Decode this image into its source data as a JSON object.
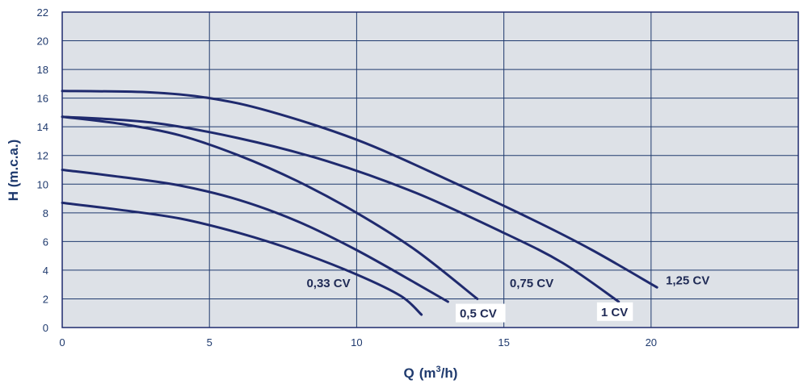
{
  "chart_data": {
    "type": "line",
    "title": "",
    "xlabel": "Q",
    "xlabel_unit_base": "(m",
    "xlabel_unit_sup": "3",
    "xlabel_unit_end": "/h)",
    "ylabel": "H (m.c.a.)",
    "xlim": [
      0,
      25
    ],
    "ylim": [
      0,
      22
    ],
    "xticks": [
      0,
      5,
      10,
      15,
      20
    ],
    "yticks": [
      0,
      2,
      4,
      6,
      8,
      10,
      12,
      14,
      16,
      18,
      20,
      22
    ],
    "grid": true,
    "colors": {
      "plot_bg": "#dde1e7",
      "line": "#1f2a6e",
      "label_bg": "#ffffff",
      "text": "#1f3a6e"
    },
    "series": [
      {
        "name": "0,33 CV",
        "points": [
          [
            0,
            8.7
          ],
          [
            2,
            8.2
          ],
          [
            4,
            7.6
          ],
          [
            6,
            6.6
          ],
          [
            8,
            5.3
          ],
          [
            10,
            3.7
          ],
          [
            11.5,
            2.2
          ],
          [
            12.2,
            0.9
          ]
        ]
      },
      {
        "name": "0,5 CV",
        "points": [
          [
            0,
            11.0
          ],
          [
            2,
            10.5
          ],
          [
            4,
            9.9
          ],
          [
            6,
            8.9
          ],
          [
            8,
            7.4
          ],
          [
            10,
            5.4
          ],
          [
            12,
            3.1
          ],
          [
            13.1,
            1.8
          ]
        ]
      },
      {
        "name": "0,75 CV",
        "points": [
          [
            0,
            14.7
          ],
          [
            2,
            14.2
          ],
          [
            4,
            13.4
          ],
          [
            6,
            12.0
          ],
          [
            8,
            10.2
          ],
          [
            10,
            8.0
          ],
          [
            12,
            5.4
          ],
          [
            14.1,
            2.0
          ]
        ]
      },
      {
        "name": "1 CV",
        "points": [
          [
            0,
            14.7
          ],
          [
            3,
            14.3
          ],
          [
            6,
            13.2
          ],
          [
            9,
            11.6
          ],
          [
            12,
            9.4
          ],
          [
            15,
            6.6
          ],
          [
            17,
            4.5
          ],
          [
            18.9,
            1.8
          ]
        ]
      },
      {
        "name": "1,25 CV",
        "points": [
          [
            0,
            16.5
          ],
          [
            3,
            16.4
          ],
          [
            5,
            16.0
          ],
          [
            7,
            15.1
          ],
          [
            10,
            13.1
          ],
          [
            13,
            10.4
          ],
          [
            16,
            7.5
          ],
          [
            18,
            5.4
          ],
          [
            20.2,
            2.8
          ]
        ]
      }
    ],
    "labels": [
      {
        "series": "0,33 CV",
        "text": "0,33 CV",
        "boxed": false,
        "at": [
          8.3,
          2.8
        ]
      },
      {
        "series": "0,5 CV",
        "text": "0,5 CV",
        "boxed": true,
        "at": [
          13.5,
          0.7
        ]
      },
      {
        "series": "0,75 CV",
        "text": "0,75 CV",
        "boxed": false,
        "at": [
          15.2,
          2.8
        ]
      },
      {
        "series": "1 CV",
        "text": "1 CV",
        "boxed": true,
        "at": [
          18.3,
          0.8
        ]
      },
      {
        "series": "1,25 CV",
        "text": "1,25 CV",
        "boxed": false,
        "at": [
          20.5,
          3.0
        ]
      }
    ]
  }
}
